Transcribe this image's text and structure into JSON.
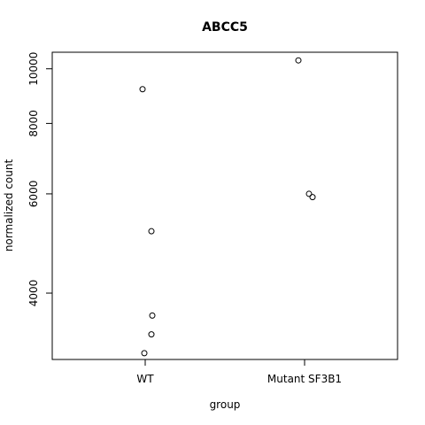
{
  "chart_data": {
    "type": "scatter",
    "title": "ABCC5",
    "xlabel": "group",
    "ylabel": "normalized count",
    "categories": [
      "WT",
      "Mutant SF3B1"
    ],
    "y_scale": "log",
    "yticks": [
      4000,
      6000,
      8000,
      10000
    ],
    "ylim": [
      3050,
      10700
    ],
    "grid": false,
    "points": [
      {
        "group": "WT",
        "y": 9200
      },
      {
        "group": "WT",
        "y": 5150
      },
      {
        "group": "WT",
        "y": 3650
      },
      {
        "group": "WT",
        "y": 3380
      },
      {
        "group": "WT",
        "y": 3130
      },
      {
        "group": "Mutant SF3B1",
        "y": 10350
      },
      {
        "group": "Mutant SF3B1",
        "y": 6000
      },
      {
        "group": "Mutant SF3B1",
        "y": 5920
      }
    ]
  }
}
